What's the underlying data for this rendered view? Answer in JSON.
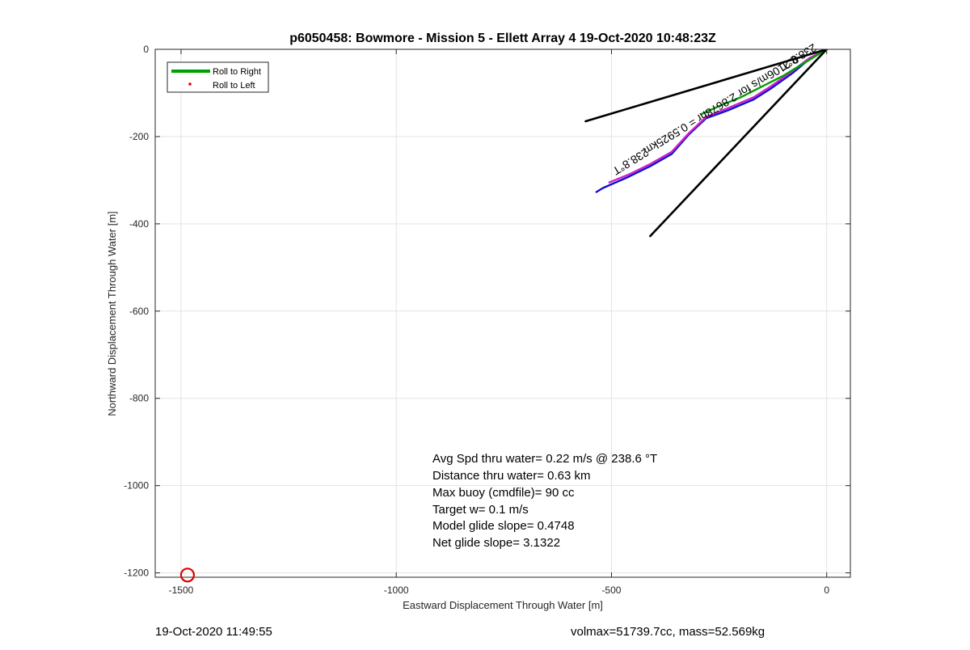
{
  "chart_data": {
    "type": "line",
    "title": "p6050458: Bowmore - Mission 5 - Ellett Array 4 19-Oct-2020 10:48:23Z",
    "xlabel": "Eastward Displacement Through Water [m]",
    "ylabel": "Northward Displacement Through Water [m]",
    "xlim": [
      -1560,
      55
    ],
    "ylim": [
      -1210,
      0
    ],
    "xticks": [
      -1500,
      -1000,
      -500,
      0
    ],
    "yticks": [
      0,
      -200,
      -400,
      -600,
      -800,
      -1000,
      -1200
    ],
    "grid": true,
    "legend": {
      "placement": "top-left",
      "entries": [
        {
          "label": "Roll to Right",
          "color": "#00a000",
          "style": "line"
        },
        {
          "label": "Roll to Left",
          "color": "#e00000",
          "style": "dot"
        }
      ]
    },
    "series": [
      {
        "color": "#1010d0",
        "x": [
          0,
          -40,
          -80,
          -130,
          -170,
          -230,
          -280,
          -320,
          -360,
          -410,
          -460,
          -520,
          -535
        ],
        "y": [
          0,
          -22,
          -55,
          -90,
          -115,
          -140,
          -158,
          -195,
          -240,
          -268,
          -292,
          -318,
          -327
        ]
      },
      {
        "color": "#cc22cc",
        "x": [
          0,
          -40,
          -80,
          -130,
          -170,
          -230,
          -280,
          -320,
          -360,
          -410,
          -460,
          -505
        ],
        "y": [
          0,
          -20,
          -50,
          -85,
          -110,
          -135,
          -155,
          -192,
          -235,
          -263,
          -287,
          -305
        ]
      },
      {
        "color": "#00a000",
        "x": [
          0,
          -50,
          -100,
          -150,
          -200,
          -250,
          -290
        ],
        "y": [
          0,
          -30,
          -60,
          -85,
          -110,
          -130,
          -148
        ]
      },
      {
        "color": "#000000",
        "x": [
          0,
          -560
        ],
        "y": [
          0,
          -165
        ]
      },
      {
        "color": "#000000",
        "x": [
          0,
          -410
        ],
        "y": [
          0,
          -428
        ]
      }
    ],
    "annotations": [
      "238.8°T",
      "0.2106m/s for 2.8678hr = 0.5925km",
      "238.8°T"
    ],
    "text_box": [
      "Avg Spd thru water=  0.22 m/s @ 238.6 °T",
      "Distance thru water=  0.63 km",
      "Max buoy (cmdfile)= 90 cc",
      "Target w= 0.1 m/s",
      "Model glide slope= 0.4748",
      "Net glide slope= 3.1322"
    ],
    "marker": {
      "shape": "circle",
      "color": "#dd0000",
      "x": -1485,
      "y": -1205
    }
  },
  "footer": {
    "left": "19-Oct-2020 11:49:55",
    "right": "volmax=51739.7cc, mass=52.569kg"
  }
}
